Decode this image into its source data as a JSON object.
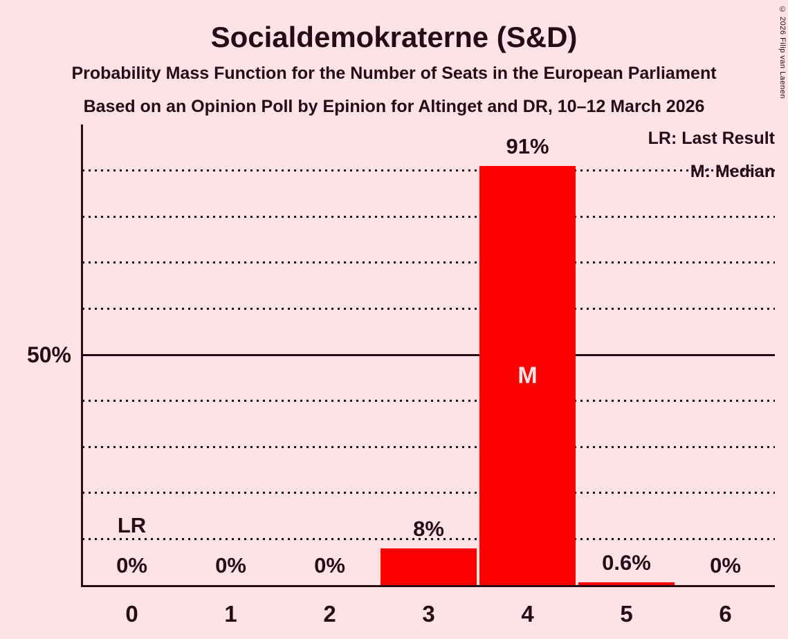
{
  "title": "Socialdemokraterne (S&D)",
  "subtitle1": "Probability Mass Function for the Number of Seats in the European Parliament",
  "subtitle2": "Based on an Opinion Poll by Epinion for Altinget and DR, 10–12 March 2026",
  "legend": {
    "last_result": "LR: Last Result",
    "median": "M: Median"
  },
  "copyright": "© 2026 Filip van Laenen",
  "colors": {
    "background": "#FCE3E8",
    "bar": "#FF0000",
    "text": "#2A0A14",
    "median_marker_text": "#FCE3E8"
  },
  "chart_data": {
    "type": "bar",
    "title": "Socialdemokraterne (S&D)",
    "categories": [
      "0",
      "1",
      "2",
      "3",
      "4",
      "5",
      "6"
    ],
    "values": [
      0,
      0,
      0,
      8,
      91,
      0.6,
      0
    ],
    "value_labels": [
      "0%",
      "0%",
      "0%",
      "8%",
      "91%",
      "0.6%",
      "0%"
    ],
    "xlabel": "",
    "ylabel": "",
    "ylim": [
      0,
      100
    ],
    "y_tick_label": "50%",
    "y_tick_value": 50,
    "dotted_gridlines": [
      10,
      20,
      30,
      40,
      60,
      70,
      80,
      90
    ],
    "solid_gridline": 50,
    "legend_position": "top-right",
    "median_category_index": 4,
    "median_marker": "M",
    "last_result_category_index": 0,
    "last_result_marker": "LR"
  }
}
